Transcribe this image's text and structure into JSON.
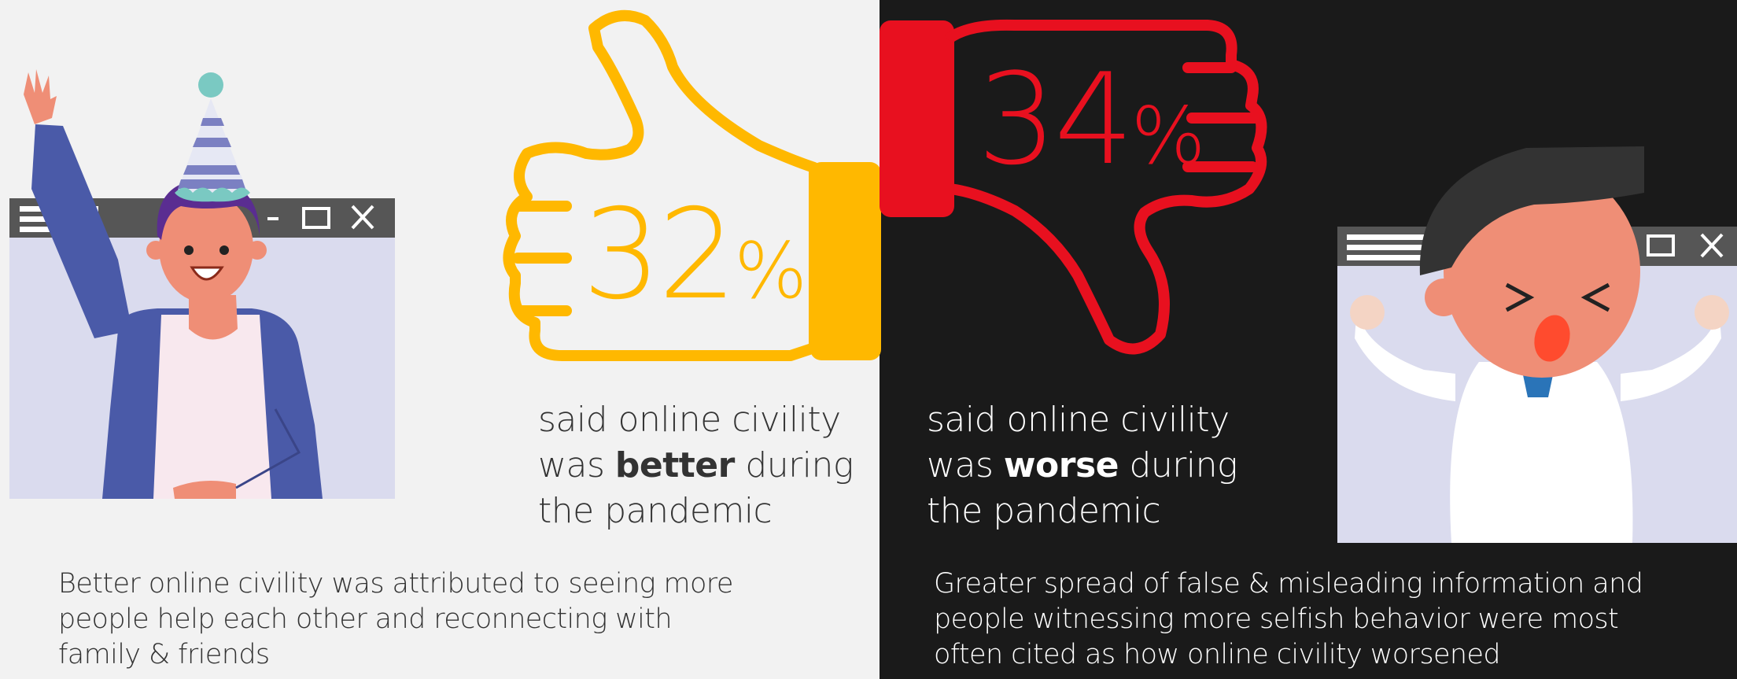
{
  "left": {
    "percent": "32",
    "percent_sign": "%",
    "caption": {
      "line1": "said online civility",
      "was": "was",
      "emphasis": "better",
      "during": "during",
      "line3": "the pandemic"
    },
    "footnote": {
      "line1": "Better online civility was attributed to seeing more",
      "line2": "people help each other and reconnecting with",
      "line3": "family & friends"
    }
  },
  "right": {
    "percent": "34",
    "percent_sign": "%",
    "caption": {
      "line1": "said online civility",
      "was": "was",
      "emphasis": "worse",
      "during": "during",
      "line3": "the pandemic"
    },
    "footnote": {
      "line1": "Greater spread of false & misleading information and",
      "line2": "people witnessing more selfish behavior were most",
      "line3": "often cited as how online civility worsened"
    }
  },
  "colors": {
    "left_bg": "#f2f2f2",
    "right_bg": "#1a1a1a",
    "thumb_up": "#ffb800",
    "thumb_down": "#e8101f",
    "text_dark": "#333333",
    "text_light": "#ffffff"
  },
  "icons": [
    "thumbs-up-icon",
    "thumbs-down-icon",
    "happy-person-illustration",
    "upset-person-illustration",
    "window-frame-icon"
  ]
}
